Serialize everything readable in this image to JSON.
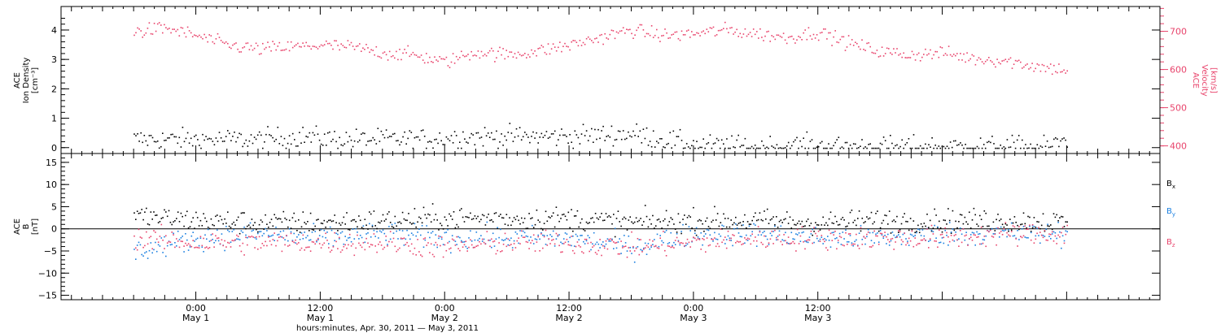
{
  "chart_data": [
    {
      "type": "scatter",
      "panel": "top",
      "left_axis": {
        "label_lines": [
          "ACE",
          "Ion Density",
          "[cm⁻³]"
        ],
        "range": [
          -0.2,
          4.8
        ],
        "major_ticks": [
          0,
          1,
          2,
          3,
          4
        ],
        "tick_labels": [
          "0",
          "1",
          "2",
          "3",
          "4"
        ]
      },
      "right_axis": {
        "label_lines": [
          "ACE",
          "Velocity",
          "[km/s]"
        ],
        "range": [
          380,
          765
        ],
        "major_ticks": [
          400,
          500,
          600,
          700
        ],
        "tick_labels": [
          "400",
          "500",
          "600",
          "700"
        ]
      },
      "series": [
        {
          "name": "",
          "axis": "left",
          "color": "#000000",
          "x_hours": [
            0,
            6,
            12,
            16,
            20,
            24,
            28,
            32,
            36,
            42,
            48,
            54,
            60,
            64,
            68,
            72,
            76,
            80,
            84,
            88,
            90
          ],
          "values": [
            0.3,
            0.3,
            0.3,
            0.4,
            0.3,
            0.3,
            0.3,
            0.4,
            0.4,
            0.4,
            0.5,
            0.1,
            0.05,
            0.1,
            0.05,
            0.05,
            0.05,
            0.05,
            0.05,
            0.05,
            0.3
          ]
        },
        {
          "name": "",
          "axis": "right",
          "color": "#e8446c",
          "x_hours": [
            0,
            3,
            6,
            9,
            12,
            15,
            18,
            21,
            24,
            27,
            30,
            33,
            36,
            39,
            42,
            45,
            48,
            51,
            54,
            57,
            60,
            63,
            66,
            69,
            72,
            75,
            78,
            81,
            84,
            87,
            90
          ],
          "values": [
            700,
            710,
            690,
            665,
            655,
            660,
            665,
            660,
            645,
            640,
            620,
            648,
            640,
            650,
            665,
            685,
            705,
            690,
            695,
            705,
            695,
            685,
            700,
            670,
            648,
            640,
            645,
            630,
            625,
            610,
            600
          ]
        }
      ]
    },
    {
      "type": "scatter",
      "panel": "bottom",
      "left_axis": {
        "label_lines": [
          "ACE",
          "B",
          "[nT]"
        ],
        "range": [
          -16,
          17
        ],
        "major_ticks": [
          -15,
          -10,
          -5,
          0,
          5,
          10,
          15
        ],
        "tick_labels": [
          "−15",
          "−10",
          "−5",
          "0",
          "5",
          "10",
          "15"
        ]
      },
      "zero_line": true,
      "legend_position": "right",
      "series": [
        {
          "name": "Bx",
          "color": "#000000",
          "x_hours": [
            0,
            6,
            12,
            18,
            24,
            30,
            36,
            42,
            48,
            54,
            60,
            66,
            72,
            78,
            84,
            90
          ],
          "values": [
            3,
            2,
            1.5,
            1.5,
            2,
            2.5,
            2.5,
            2.5,
            1.5,
            2,
            2,
            1.5,
            2,
            2,
            2,
            1.5
          ]
        },
        {
          "name": "By",
          "color": "#1a7fe0",
          "x_hours": [
            0,
            6,
            12,
            18,
            24,
            30,
            36,
            42,
            48,
            54,
            60,
            66,
            72,
            78,
            84,
            90
          ],
          "values": [
            -5,
            -2,
            -1,
            -2,
            -1,
            -2,
            -2,
            -2,
            -4,
            -1,
            -1,
            -2,
            -2,
            -1,
            -1,
            -1
          ]
        },
        {
          "name": "Bz",
          "color": "#e8446c",
          "x_hours": [
            0,
            6,
            12,
            18,
            24,
            30,
            36,
            42,
            48,
            54,
            60,
            66,
            72,
            78,
            84,
            90
          ],
          "values": [
            -2,
            -3,
            -3,
            -3,
            -3,
            -4,
            -3,
            -3,
            -4,
            -3,
            -2,
            -2,
            -2,
            -2,
            -1,
            -1
          ]
        }
      ]
    }
  ],
  "x_axis": {
    "title": "hours:minutes, Apr. 30, 2011 — May  3, 2011",
    "range_hours": [
      -7,
      99
    ],
    "major_ticks": [
      {
        "hours": 6,
        "time": "0:00",
        "date": "May 1"
      },
      {
        "hours": 18,
        "time": "12:00",
        "date": "May 1"
      },
      {
        "hours": 30,
        "time": "0:00",
        "date": "May 2"
      },
      {
        "hours": 42,
        "time": "12:00",
        "date": "May 2"
      },
      {
        "hours": 54,
        "time": "0:00",
        "date": "May 3"
      },
      {
        "hours": 66,
        "time": "12:00",
        "date": "May 3"
      }
    ]
  },
  "legend": {
    "items": [
      {
        "label": "B",
        "sub": "x",
        "color": "#000000"
      },
      {
        "label": "B",
        "sub": "y",
        "color": "#1a7fe0"
      },
      {
        "label": "B",
        "sub": "z",
        "color": "#e8446c"
      }
    ]
  }
}
